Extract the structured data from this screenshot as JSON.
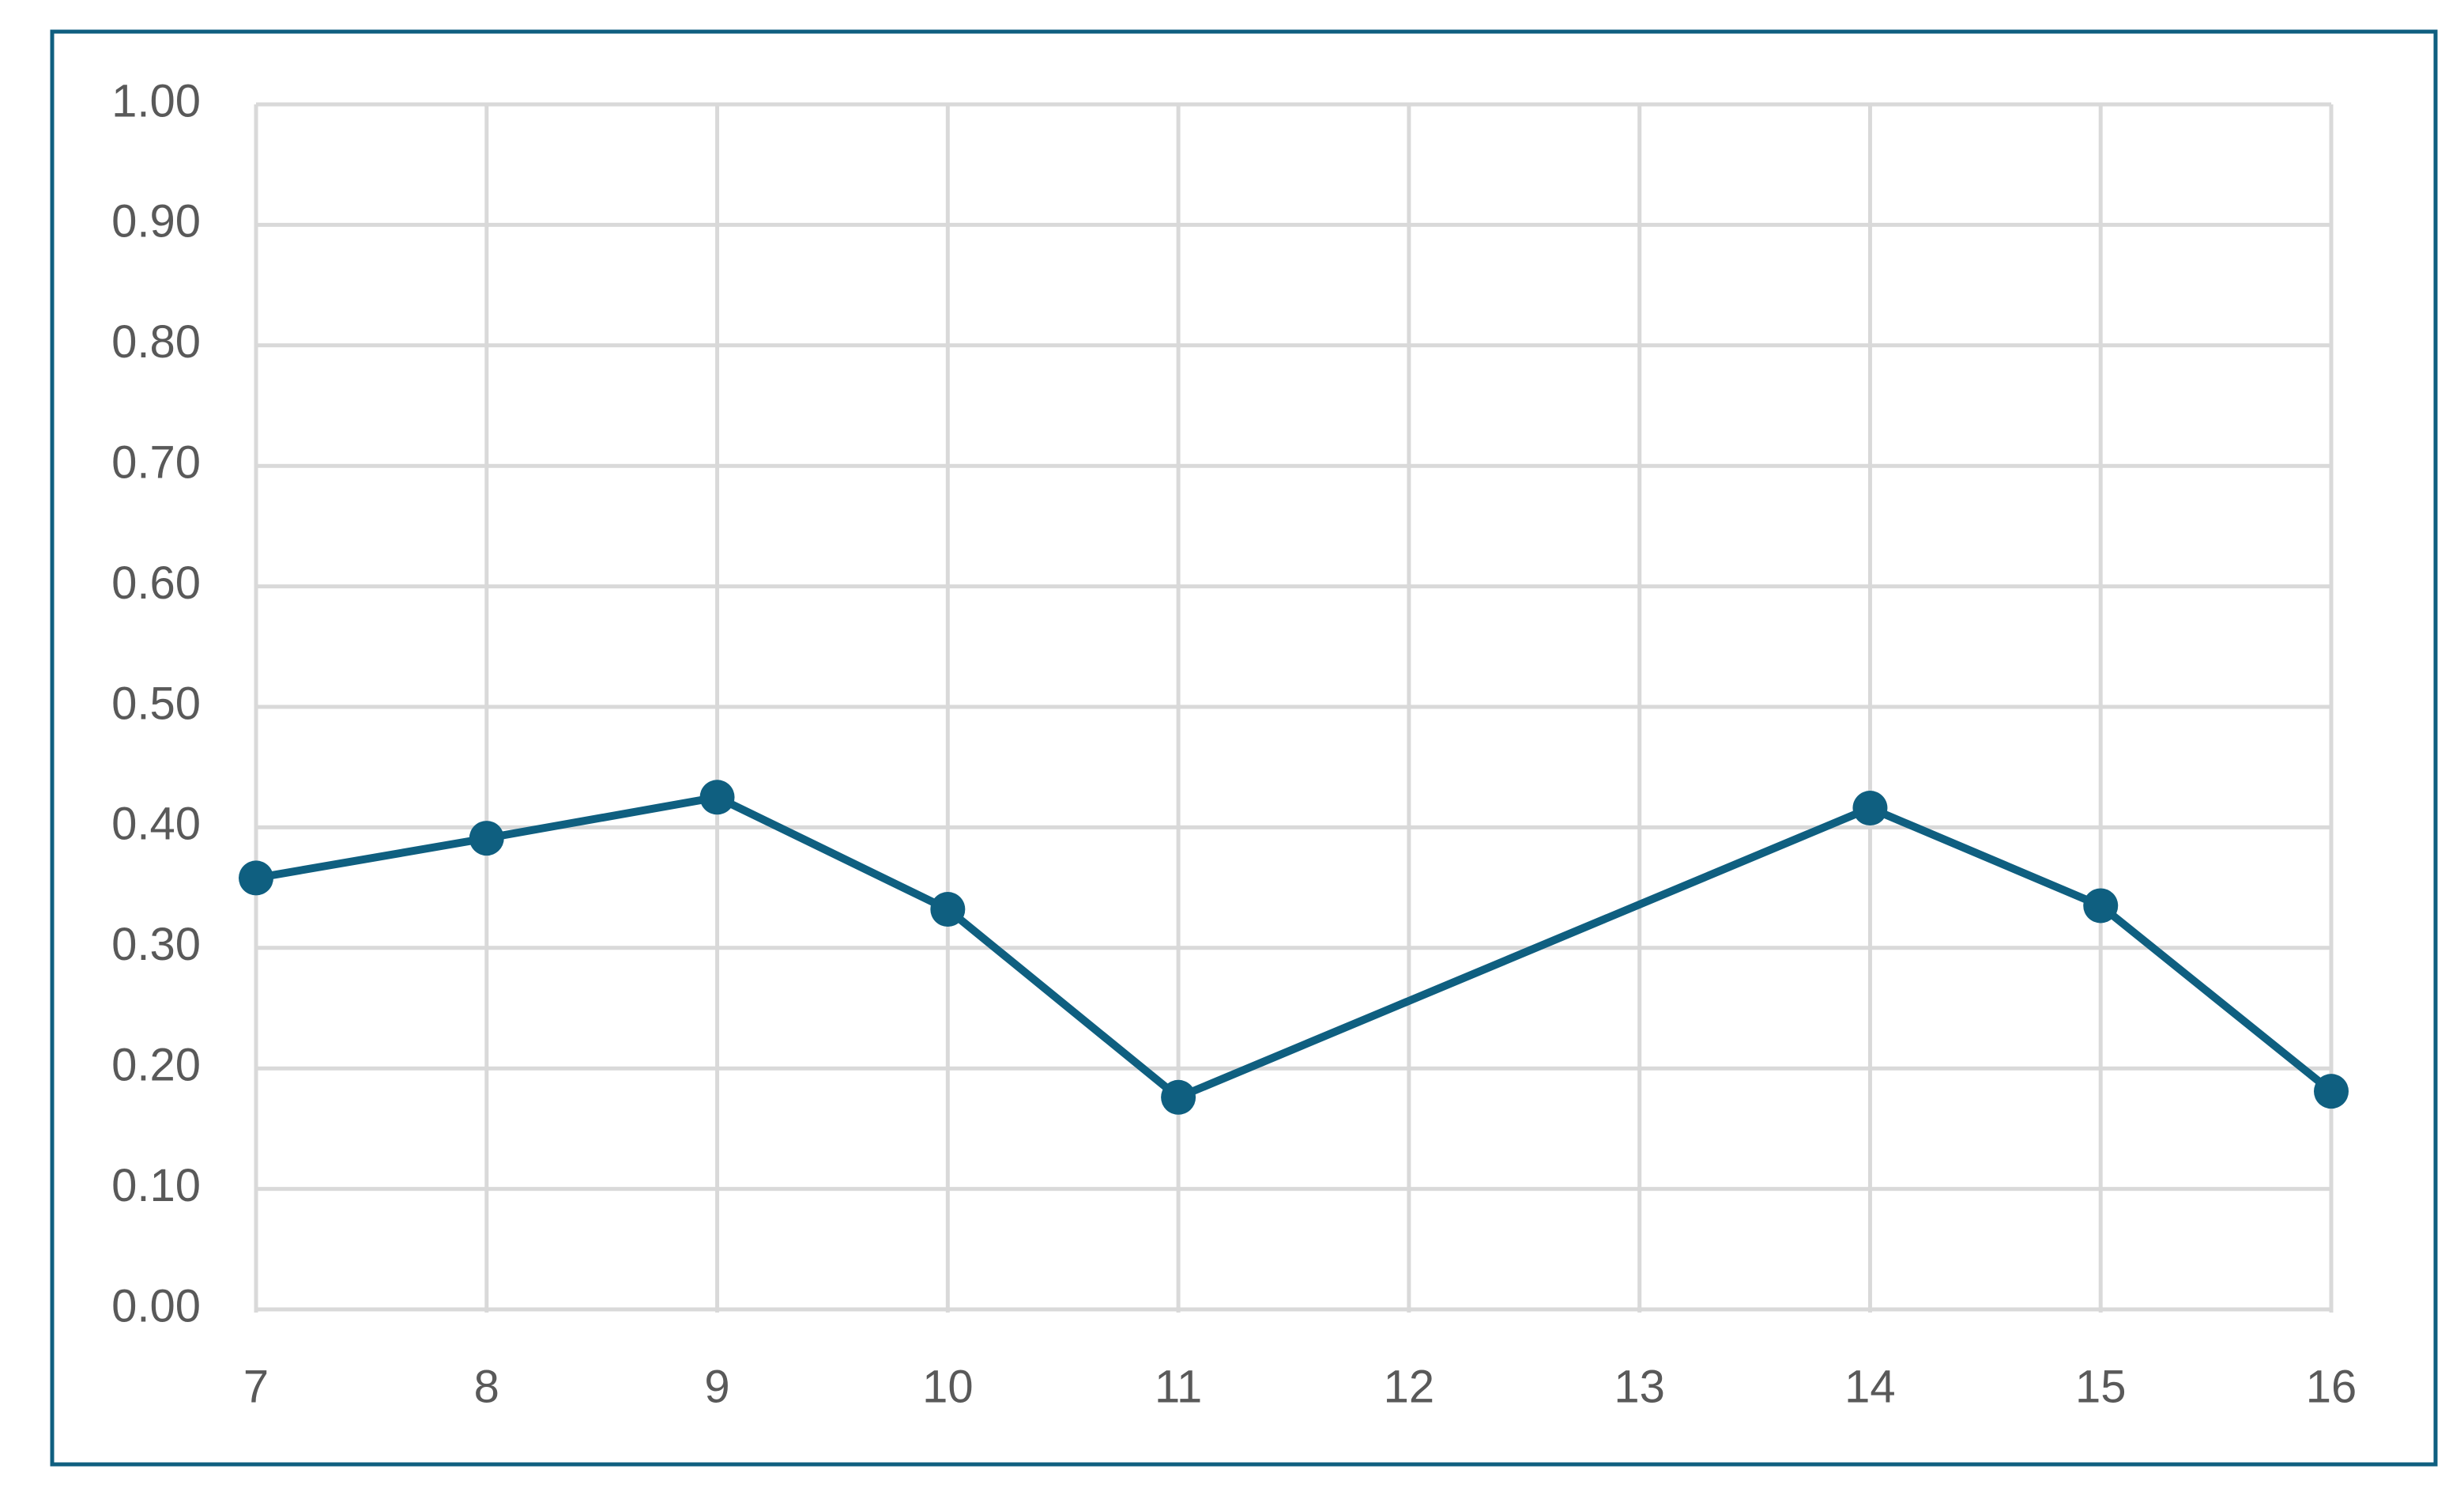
{
  "chart_data": {
    "type": "line",
    "x": [
      7,
      8,
      9,
      10,
      11,
      14,
      15,
      16
    ],
    "series": [
      {
        "color": "#0f5f80",
        "values": [
          0.358,
          0.391,
          0.425,
          0.332,
          0.176,
          0.416,
          0.335,
          0.181
        ]
      }
    ],
    "xlim": [
      7,
      16
    ],
    "xticks": [
      7,
      8,
      9,
      10,
      11,
      12,
      13,
      14,
      15,
      16
    ],
    "ylim": [
      0,
      1
    ],
    "yticks": [
      {
        "value": 0,
        "label": "0.00"
      },
      {
        "value": 0.1,
        "label": "0.10"
      },
      {
        "value": 0.2,
        "label": "0.20"
      },
      {
        "value": 0.3,
        "label": "0.30"
      },
      {
        "value": 0.4,
        "label": "0.40"
      },
      {
        "value": 0.5,
        "label": "0.50"
      },
      {
        "value": 0.6,
        "label": "0.60"
      },
      {
        "value": 0.7,
        "label": "0.70"
      },
      {
        "value": 0.8,
        "label": "0.80"
      },
      {
        "value": 0.9,
        "label": "0.90"
      },
      {
        "value": 1,
        "label": "1.00"
      }
    ],
    "grid": true
  }
}
